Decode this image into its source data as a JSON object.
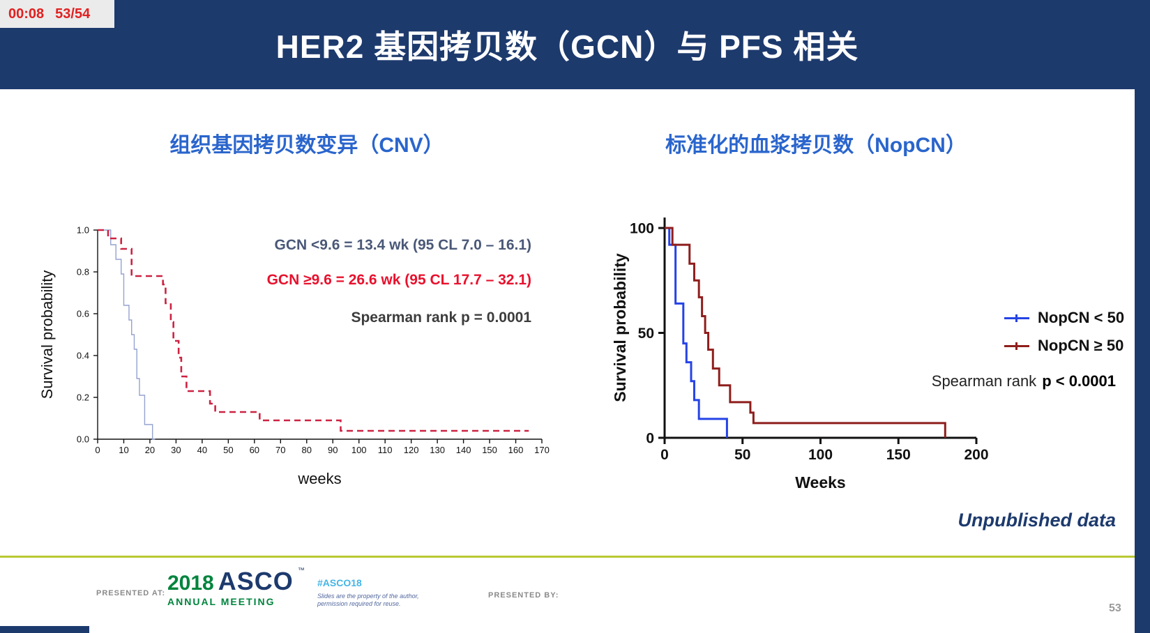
{
  "player": {
    "timer": "00:08",
    "counter": "53/54"
  },
  "header": {
    "title": "HER2 基因拷贝数（GCN）与 PFS 相关"
  },
  "sections": {
    "left_title": "组织基因拷贝数变异（CNV）",
    "right_title": "标准化的血浆拷贝数（NopCN）"
  },
  "left_annotations": {
    "line1": "GCN <9.6 = 13.4 wk (95 CL 7.0 – 16.1)",
    "line2": "GCN ≥9.6 = 26.6 wk (95 CL 17.7 – 32.1)",
    "line3": "Spearman rank p = 0.0001"
  },
  "right_legend": {
    "entries": [
      {
        "label": "NopCN < 50",
        "color": "#2543e6"
      },
      {
        "label": "NopCN ≥ 50",
        "color": "#8e1e1c"
      }
    ],
    "stat_label": "Spearman rank",
    "stat_value": "p < 0.0001"
  },
  "note": "Unpublished data",
  "footer": {
    "presented_at": "PRESENTED AT:",
    "logo_year": "2018",
    "logo_name": "ASCO",
    "logo_tm": "™",
    "logo_sub": "ANNUAL MEETING",
    "hashtag": "#ASCO18",
    "disclaimer1": "Slides are the property of the author,",
    "disclaimer2": "permission required for reuse.",
    "presented_by": "PRESENTED BY:",
    "page_number": "53"
  },
  "colors": {
    "navy": "#1d3a6d",
    "section_blue": "#2a65cc",
    "alert_red": "#e8112d",
    "timer_red": "#e02020",
    "asco_green": "#00843d",
    "hashtag_blue": "#45b5e6",
    "divider_green": "#b9c832"
  },
  "chart_data": [
    {
      "type": "line",
      "subtype": "kaplan-meier-step",
      "title": "组织基因拷贝数变异（CNV）",
      "xlabel": "weeks",
      "ylabel": "Survival probability",
      "xlim": [
        0,
        170
      ],
      "ylim": [
        0,
        1.0
      ],
      "xticks": [
        0,
        10,
        20,
        30,
        40,
        50,
        60,
        70,
        80,
        90,
        100,
        110,
        120,
        130,
        140,
        150,
        160,
        170
      ],
      "yticks": [
        0,
        0.2,
        0.4,
        0.6,
        0.8,
        1.0
      ],
      "grid": false,
      "legend_position": "none",
      "series": [
        {
          "name": "GCN <9.6",
          "median": "13.4 wk (95 CL 7.0 – 16.1)",
          "color": "#94a2d0",
          "dash": "",
          "width": 1.4,
          "points": [
            [
              0,
              1.0
            ],
            [
              5,
              0.93
            ],
            [
              7,
              0.86
            ],
            [
              9,
              0.79
            ],
            [
              10,
              0.64
            ],
            [
              12,
              0.57
            ],
            [
              13,
              0.5
            ],
            [
              14,
              0.43
            ],
            [
              15,
              0.29
            ],
            [
              16,
              0.21
            ],
            [
              18,
              0.07
            ],
            [
              21,
              0.0
            ],
            [
              22,
              0.0
            ]
          ]
        },
        {
          "name": "GCN ≥9.6",
          "median": "26.6 wk (95 CL 17.7 – 32.1)",
          "color": "#cc2342",
          "dash": "9 6",
          "width": 2.6,
          "points": [
            [
              0,
              1.0
            ],
            [
              4,
              0.96
            ],
            [
              9,
              0.91
            ],
            [
              13,
              0.78
            ],
            [
              25,
              0.74
            ],
            [
              26,
              0.65
            ],
            [
              28,
              0.56
            ],
            [
              29,
              0.47
            ],
            [
              31,
              0.39
            ],
            [
              32,
              0.3
            ],
            [
              34,
              0.23
            ],
            [
              43,
              0.17
            ],
            [
              45,
              0.13
            ],
            [
              62,
              0.09
            ],
            [
              93,
              0.04
            ],
            [
              165,
              0.04
            ]
          ]
        }
      ],
      "annotation": "Spearman rank p = 0.0001"
    },
    {
      "type": "line",
      "subtype": "kaplan-meier-step",
      "title": "标准化的血浆拷贝数（NopCN）",
      "xlabel": "Weeks",
      "ylabel": "Survival probability",
      "xlim": [
        0,
        200
      ],
      "ylim": [
        0,
        105
      ],
      "xticks": [
        0,
        50,
        100,
        150,
        200
      ],
      "yticks": [
        0,
        50,
        100
      ],
      "grid": false,
      "legend_position": "right",
      "series": [
        {
          "name": "NopCN < 50",
          "color": "#2543e6",
          "dash": "",
          "width": 3,
          "points": [
            [
              0,
              100
            ],
            [
              3,
              92
            ],
            [
              7,
              64
            ],
            [
              12,
              45
            ],
            [
              14,
              36
            ],
            [
              17,
              27
            ],
            [
              19,
              18
            ],
            [
              22,
              9
            ],
            [
              40,
              0
            ]
          ]
        },
        {
          "name": "NopCN ≥ 50",
          "color": "#8e1e1c",
          "dash": "",
          "width": 3,
          "points": [
            [
              0,
              100
            ],
            [
              5,
              92
            ],
            [
              16,
              83
            ],
            [
              19,
              75
            ],
            [
              22,
              67
            ],
            [
              24,
              58
            ],
            [
              26,
              50
            ],
            [
              28,
              42
            ],
            [
              31,
              33
            ],
            [
              35,
              25
            ],
            [
              42,
              17
            ],
            [
              55,
              12
            ],
            [
              57,
              7
            ],
            [
              180,
              0
            ]
          ]
        }
      ],
      "annotation": "Spearman rank p < 0.0001"
    }
  ]
}
